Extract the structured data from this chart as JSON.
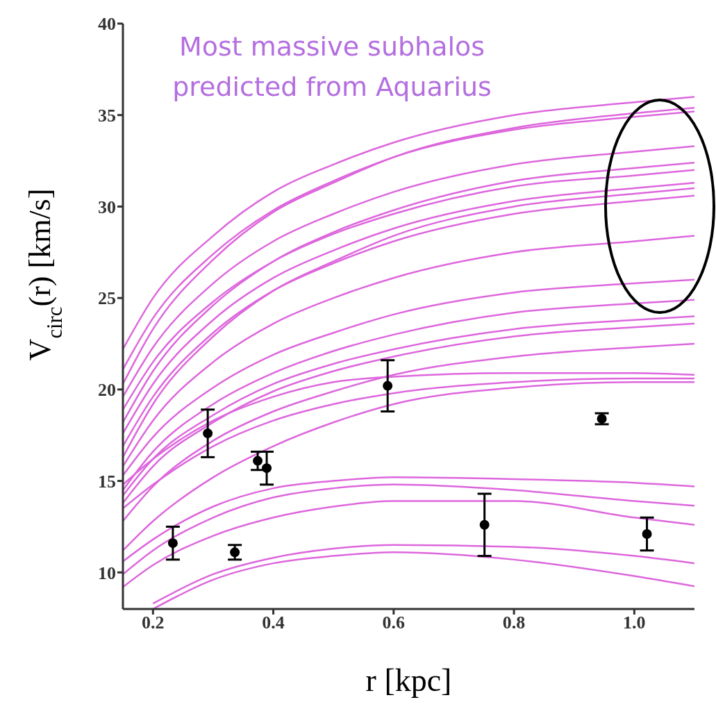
{
  "chart_data": {
    "type": "line",
    "xlabel": "r [kpc]",
    "ylabel": "V$_{circ}$(r) [km/s]",
    "annotations": [
      "Most massive subhalos predicted from Aquarius"
    ],
    "x": [
      0.15,
      0.2,
      0.3,
      0.4,
      0.5,
      0.6,
      0.8,
      1.0,
      1.1
    ],
    "xlim": [
      0.15,
      1.1
    ],
    "xticks": [
      {
        "value": 0.2,
        "label": "0.2"
      },
      {
        "value": 0.4,
        "label": "0.4"
      },
      {
        "value": 0.6,
        "label": "0.6"
      },
      {
        "value": 0.8,
        "label": "0.8"
      },
      {
        "value": 1.0,
        "label": "1.0"
      }
    ],
    "ylim": [
      8,
      40
    ],
    "yticks": [
      10,
      15,
      20,
      25,
      30,
      35,
      40
    ],
    "grid": false,
    "marker": "none",
    "line_style": "solid",
    "series": [
      {
        "color": "#dd66dd",
        "values": [
          22.2,
          25.0,
          28.4,
          30.8,
          32.3,
          33.5,
          35.0,
          35.7,
          36.0
        ]
      },
      {
        "color": "#dd66dd",
        "values": [
          20.3,
          23.3,
          27.1,
          29.7,
          31.3,
          32.7,
          34.3,
          35.1,
          35.4
        ]
      },
      {
        "color": "#dd66dd",
        "values": [
          21.1,
          23.9,
          27.4,
          29.8,
          31.4,
          32.7,
          34.2,
          34.9,
          35.2
        ]
      },
      {
        "color": "#dd66dd",
        "values": [
          19.6,
          22.3,
          25.8,
          28.1,
          29.6,
          30.8,
          32.3,
          33.0,
          33.3
        ]
      },
      {
        "color": "#dd66dd",
        "values": [
          18.2,
          21.0,
          24.6,
          27.0,
          28.6,
          29.8,
          31.4,
          32.1,
          32.4
        ]
      },
      {
        "color": "#dd66dd",
        "values": [
          18.9,
          21.5,
          24.8,
          27.0,
          28.5,
          29.6,
          31.1,
          31.7,
          32.0
        ]
      },
      {
        "color": "#dd66dd",
        "values": [
          17.6,
          20.3,
          23.8,
          26.1,
          27.6,
          28.8,
          30.3,
          31.0,
          31.3
        ]
      },
      {
        "color": "#dd66dd",
        "values": [
          16.3,
          19.2,
          22.9,
          25.4,
          27.0,
          28.4,
          30.0,
          30.7,
          31.0
        ]
      },
      {
        "color": "#dd66dd",
        "values": [
          16.9,
          19.6,
          23.1,
          25.4,
          26.9,
          28.1,
          29.6,
          30.3,
          30.6
        ]
      },
      {
        "color": "#dd66dd",
        "values": [
          15.8,
          18.3,
          21.5,
          23.6,
          25.0,
          26.1,
          27.5,
          28.1,
          28.4
        ]
      },
      {
        "color": "#dd66dd",
        "values": [
          15.3,
          17.4,
          20.1,
          21.9,
          23.1,
          24.1,
          25.3,
          25.8,
          26.0
        ]
      },
      {
        "color": "#dd66dd",
        "values": [
          14.5,
          16.6,
          19.2,
          20.9,
          22.1,
          23.0,
          24.2,
          24.7,
          24.9
        ]
      },
      {
        "color": "#dd66dd",
        "values": [
          14.2,
          16.2,
          18.6,
          20.3,
          21.4,
          22.2,
          23.3,
          23.8,
          24.0
        ]
      },
      {
        "color": "#dd66dd",
        "values": [
          13.8,
          15.8,
          18.2,
          19.9,
          21.0,
          21.8,
          22.9,
          23.4,
          23.6
        ]
      },
      {
        "color": "#dd66dd",
        "values": [
          12.8,
          14.7,
          17.2,
          18.8,
          19.9,
          20.8,
          21.8,
          22.3,
          22.5
        ]
      },
      {
        "color": "#dd66dd",
        "values": [
          14.8,
          16.2,
          18.3,
          19.6,
          20.4,
          20.7,
          20.9,
          20.9,
          20.8
        ]
      },
      {
        "color": "#dd66dd",
        "values": [
          13.5,
          14.8,
          16.9,
          18.3,
          19.2,
          19.8,
          20.4,
          20.6,
          20.6
        ]
      },
      {
        "color": "#dd66dd",
        "values": [
          11.2,
          12.8,
          15.2,
          16.9,
          18.2,
          19.2,
          20.1,
          20.4,
          20.4
        ]
      },
      {
        "color": "#dd66dd",
        "values": [
          10.6,
          11.8,
          13.6,
          14.6,
          15.0,
          15.2,
          15.1,
          14.9,
          14.7
        ]
      },
      {
        "color": "#dd66dd",
        "values": [
          9.9,
          11.2,
          13.0,
          14.1,
          14.6,
          14.8,
          14.5,
          13.9,
          13.65
        ]
      },
      {
        "color": "#dd66dd",
        "values": [
          9.2,
          10.4,
          12.0,
          13.0,
          13.6,
          13.9,
          13.9,
          13.0,
          12.6
        ]
      },
      {
        "color": "#dd66dd",
        "values": [
          null,
          8.3,
          9.9,
          10.8,
          11.3,
          11.5,
          11.4,
          10.9,
          10.5
        ]
      },
      {
        "color": "#dd66dd",
        "values": [
          null,
          8.0,
          9.6,
          10.5,
          10.9,
          11.1,
          10.7,
          9.8,
          9.24
        ]
      },
      {
        "type": "scatter",
        "color": "#000000",
        "marker": "circle",
        "x": [
          0.233,
          0.291,
          0.336,
          0.374,
          0.389,
          0.59,
          0.751,
          0.946,
          1.021
        ],
        "values": [
          11.6,
          17.6,
          11.1,
          16.1,
          15.7,
          20.2,
          12.6,
          18.4,
          12.1
        ],
        "errors": [
          0.9,
          1.3,
          0.4,
          0.5,
          0.9,
          1.4,
          1.7,
          0.3,
          0.9
        ]
      }
    ]
  }
}
